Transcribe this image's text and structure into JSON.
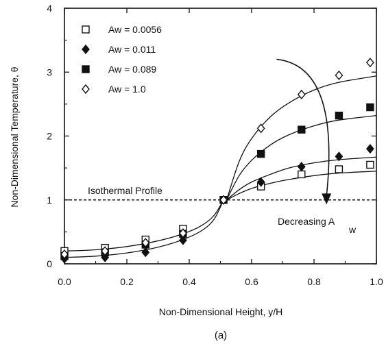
{
  "chart_data": {
    "type": "scatter",
    "title": "",
    "xlabel": "Non-Dimensional Height, y/H",
    "ylabel": "Non-Dimensional Temperature, θ",
    "xlim": [
      0.0,
      1.0
    ],
    "ylim": [
      0,
      4
    ],
    "xticks": [
      "0.0",
      "0.2",
      "0.4",
      "0.6",
      "0.8",
      "1.0"
    ],
    "yticks": [
      "0",
      "1",
      "2",
      "3",
      "4"
    ],
    "legend_position": "top-left",
    "series": [
      {
        "name": "Aw = 0.0056",
        "marker": "open-square",
        "x": [
          0.0,
          0.13,
          0.26,
          0.38,
          0.51,
          0.63,
          0.76,
          0.88,
          0.98
        ],
        "y": [
          0.2,
          0.25,
          0.38,
          0.55,
          1.0,
          1.21,
          1.4,
          1.48,
          1.55
        ]
      },
      {
        "name": "Aw = 0.011",
        "marker": "filled-diamond",
        "x": [
          0.0,
          0.13,
          0.26,
          0.38,
          0.51,
          0.63,
          0.76,
          0.88,
          0.98
        ],
        "y": [
          0.08,
          0.1,
          0.18,
          0.37,
          1.0,
          1.28,
          1.52,
          1.68,
          1.8
        ]
      },
      {
        "name": "Aw = 0.089",
        "marker": "filled-square",
        "x": [
          0.0,
          0.13,
          0.26,
          0.38,
          0.51,
          0.63,
          0.76,
          0.88,
          0.98
        ],
        "y": [
          0.12,
          0.18,
          0.3,
          0.47,
          1.0,
          1.72,
          2.1,
          2.32,
          2.45
        ]
      },
      {
        "name": "Aw = 1.0",
        "marker": "open-diamond",
        "x": [
          0.0,
          0.13,
          0.26,
          0.38,
          0.51,
          0.63,
          0.76,
          0.88,
          0.98
        ],
        "y": [
          0.15,
          0.2,
          0.33,
          0.48,
          1.0,
          2.12,
          2.65,
          2.95,
          3.15
        ]
      }
    ],
    "fit_curves": {
      "lower": {
        "x": [
          0.0,
          0.1,
          0.2,
          0.3,
          0.38,
          0.44,
          0.48,
          0.51
        ],
        "y": [
          [
            0.2,
            0.22,
            0.27,
            0.36,
            0.47,
            0.6,
            0.76,
            1.0
          ],
          [
            0.1,
            0.12,
            0.17,
            0.26,
            0.38,
            0.52,
            0.7,
            1.0
          ]
        ]
      },
      "upper": {
        "x": [
          0.52,
          0.56,
          0.6,
          0.66,
          0.72,
          0.8,
          0.88,
          1.0
        ],
        "y": [
          [
            1.0,
            1.1,
            1.18,
            1.26,
            1.32,
            1.38,
            1.42,
            1.45
          ],
          [
            1.0,
            1.16,
            1.28,
            1.4,
            1.5,
            1.58,
            1.63,
            1.67
          ],
          [
            1.0,
            1.38,
            1.62,
            1.86,
            2.02,
            2.16,
            2.25,
            2.32
          ],
          [
            1.0,
            1.6,
            1.96,
            2.3,
            2.52,
            2.72,
            2.84,
            2.94
          ]
        ]
      }
    },
    "reference_line": {
      "y": 1.0,
      "label": "Isothermal Profile",
      "style": "dashed"
    },
    "annotation": {
      "text": "Decreasing A",
      "subscript": "w",
      "arrow_from": [
        0.68,
        3.2
      ],
      "arrow_to": [
        0.84,
        0.95
      ]
    },
    "caption": "(a)"
  }
}
